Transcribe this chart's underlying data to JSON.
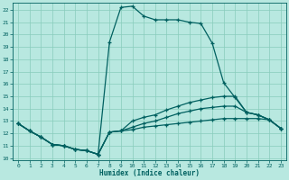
{
  "xlabel": "Humidex (Indice chaleur)",
  "xlim": [
    -0.5,
    23.5
  ],
  "ylim": [
    9.8,
    22.6
  ],
  "yticks": [
    10,
    11,
    12,
    13,
    14,
    15,
    16,
    17,
    18,
    19,
    20,
    21,
    22
  ],
  "xticks": [
    0,
    1,
    2,
    3,
    4,
    5,
    6,
    7,
    8,
    9,
    10,
    11,
    12,
    13,
    14,
    15,
    16,
    17,
    18,
    19,
    20,
    21,
    22,
    23
  ],
  "bg_color": "#b8e8e0",
  "line_color": "#006060",
  "grid_color": "#88ccbb",
  "line1_x": [
    0,
    1,
    2,
    3,
    4,
    5,
    6,
    7,
    8,
    9,
    10,
    11,
    12,
    13,
    14,
    15,
    16,
    17,
    18,
    19,
    20,
    21,
    22,
    23
  ],
  "line1_y": [
    12.8,
    12.2,
    11.7,
    11.1,
    11.0,
    10.7,
    10.6,
    10.3,
    19.4,
    22.2,
    22.3,
    21.5,
    21.2,
    21.2,
    21.2,
    21.0,
    20.9,
    19.3,
    16.1,
    14.9,
    13.7,
    13.5,
    13.1,
    12.4
  ],
  "line2_x": [
    0,
    1,
    2,
    3,
    4,
    5,
    6,
    7,
    8,
    9,
    10,
    11,
    12,
    13,
    14,
    15,
    16,
    17,
    18,
    19,
    20,
    21,
    22,
    23
  ],
  "line2_y": [
    12.8,
    12.2,
    11.7,
    11.1,
    11.0,
    10.7,
    10.6,
    10.3,
    12.1,
    12.2,
    13.0,
    13.3,
    13.5,
    13.9,
    14.2,
    14.5,
    14.7,
    14.9,
    15.0,
    15.0,
    13.7,
    13.5,
    13.1,
    12.4
  ],
  "line3_x": [
    0,
    1,
    2,
    3,
    4,
    5,
    6,
    7,
    8,
    9,
    10,
    11,
    12,
    13,
    14,
    15,
    16,
    17,
    18,
    19,
    20,
    21,
    22,
    23
  ],
  "line3_y": [
    12.8,
    12.2,
    11.7,
    11.1,
    11.0,
    10.7,
    10.6,
    10.3,
    12.1,
    12.2,
    12.5,
    12.8,
    13.0,
    13.3,
    13.6,
    13.8,
    14.0,
    14.1,
    14.2,
    14.2,
    13.7,
    13.5,
    13.1,
    12.4
  ],
  "line4_x": [
    0,
    1,
    2,
    3,
    4,
    5,
    6,
    7,
    8,
    9,
    10,
    11,
    12,
    13,
    14,
    15,
    16,
    17,
    18,
    19,
    20,
    21,
    22,
    23
  ],
  "line4_y": [
    12.8,
    12.2,
    11.7,
    11.1,
    11.0,
    10.7,
    10.6,
    10.3,
    12.1,
    12.2,
    12.3,
    12.5,
    12.6,
    12.7,
    12.8,
    12.9,
    13.0,
    13.1,
    13.2,
    13.2,
    13.2,
    13.2,
    13.1,
    12.4
  ]
}
